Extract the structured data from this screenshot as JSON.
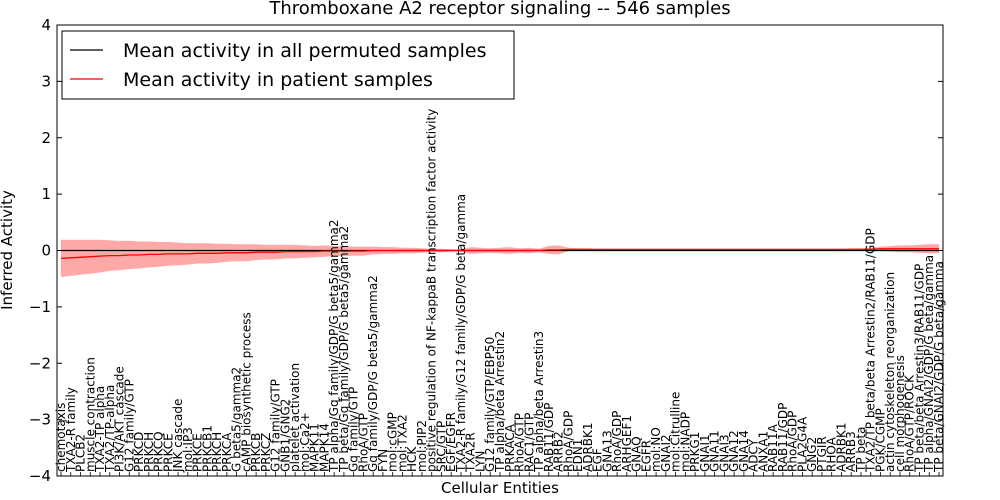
{
  "chart_data": {
    "type": "line",
    "title": "Thromboxane A2 receptor signaling -- 546 samples",
    "xlabel": "Cellular Entities",
    "ylabel": "Inferred Activity",
    "ylim": [
      -4,
      4
    ],
    "yticks": [
      -4,
      -3,
      -2,
      -1,
      0,
      1,
      2,
      3,
      4
    ],
    "reference_line": 0,
    "legend": {
      "placement": "top-left",
      "entries": [
        {
          "label": "Mean activity in all permuted samples",
          "color": "#000000"
        },
        {
          "label": "Mean activity in patient samples",
          "color": "#ff0000"
        }
      ]
    },
    "entities": [
      "chemotaxis",
      "TXA2-R family",
      "PLCB2",
      "muscle contraction",
      "TXA2-TP alpha",
      "TXA2/TP-alpha",
      "PI3K/AKT cascade",
      "G12 family/GTP",
      "PRKCD",
      "PRKCH",
      "PRKCQ",
      "PRKCE",
      "JNK cascade",
      "mol:IP3",
      "PRKCE",
      "PRKCB1",
      "PRKCH",
      "PRKCA",
      "G beta5/gamma2",
      "cAMP biosynthetic process",
      "PRKCB",
      "PRKCZ",
      "G12 family/GTP",
      "GNB1/GNG2",
      "platelet activation",
      "mol:Ca2+",
      "MAPK11",
      "MAPK14",
      "TP alpha/Gq family/GDP/G beta5/gamma2",
      "TP beta/Gq family/GDP/G beta5/gamma2",
      "Gq family/GTP",
      "RhoA/GTP",
      "Gq family/GDP/G beta5/gamma2",
      "FYN",
      "mol:cGMP",
      "mol:TXA2",
      "HCK",
      "mol:PIP2",
      "positive regulation of NF-kappaB transcription factor activity",
      "SRC/GTP",
      "EGF/EGFR",
      "TXA2-R family/G12 family/GDP/G beta/gamma",
      "TXA2R",
      "LYN",
      "G12 family/GTP/EBP50",
      "TP alpha/beta Arrestin2",
      "PRKACA",
      "RhoA/GTP",
      "RAC1/GTP",
      "TP alpha/beta Arrestin3",
      "RAB11/GDP",
      "ARRB2",
      "RhoA/GDP",
      "EDN1",
      "ADRBK1",
      "EGF",
      "GNA13",
      "RhoA/GDP",
      "ARHGEF1",
      "GNAQ",
      "EGFR",
      "mol:NO",
      "GNAI2",
      "mol:Citrulline",
      "mol:NADP",
      "PRKG1",
      "GNAI1",
      "GNA11",
      "GNAI3",
      "GNA12",
      "GNA14",
      "ADCY",
      "ANXA1",
      "RAB11A",
      "RAB11/GDP",
      "RhoA/GDP",
      "PLA2G4A",
      "GNG2",
      "PTGIR",
      "RHOA",
      "ADRBK1",
      "ARRB3",
      "TP beta",
      "TXA2/TP beta/beta Arrestin2/RAB11/GDP",
      "PGK/CGMP",
      "actin cytoskeleton reorganization",
      "cell morphogenesis",
      "RhoA/GTP/ROCK",
      "TP beta/beta Arrestin3/RAB11/GDP",
      "TP alpha/GNAI2/GDP/G beta/gamma",
      "TP beta/GNAI2/GDP/G beta/gamma"
    ],
    "series": [
      {
        "name": "Mean activity in all permuted samples",
        "color": "#000000",
        "values": [
          0.0,
          0.0,
          0.0,
          0.0,
          0.0,
          0.0,
          0.0,
          0.0,
          0.0,
          0.0,
          0.0,
          0.0,
          0.0,
          0.0,
          0.0,
          0.0,
          0.0,
          0.0,
          0.0,
          0.0,
          0.0,
          0.0,
          0.0,
          0.0,
          0.0,
          0.0,
          0.0,
          0.0,
          0.0,
          0.0,
          0.0,
          0.0,
          0.0,
          0.0,
          0.0,
          0.0,
          0.0,
          0.0,
          0.0,
          0.0,
          0.0,
          0.0,
          0.0,
          0.0,
          0.0,
          0.0,
          0.0,
          0.0,
          0.0,
          0.0,
          0.0,
          0.0,
          0.0,
          0.0,
          0.0,
          0.0,
          0.0,
          0.0,
          0.0,
          0.0,
          0.0,
          0.0,
          0.0,
          0.0,
          0.0,
          0.0,
          0.0,
          0.0,
          0.0,
          0.0,
          0.0,
          0.0,
          0.0,
          0.0,
          0.0,
          0.0,
          0.0,
          0.0,
          0.0,
          0.0,
          0.0,
          0.0,
          0.0,
          0.0,
          0.0,
          0.0,
          0.0,
          0.0,
          0.0,
          0.0,
          0.0
        ]
      },
      {
        "name": "Mean activity in patient samples",
        "color": "#ff0000",
        "values": [
          -0.14,
          -0.13,
          -0.12,
          -0.11,
          -0.1,
          -0.09,
          -0.09,
          -0.08,
          -0.08,
          -0.07,
          -0.07,
          -0.06,
          -0.06,
          -0.06,
          -0.05,
          -0.05,
          -0.05,
          -0.04,
          -0.04,
          -0.04,
          -0.03,
          -0.03,
          -0.03,
          -0.02,
          -0.02,
          -0.02,
          -0.02,
          -0.01,
          -0.01,
          -0.01,
          -0.01,
          -0.01,
          0.0,
          0.0,
          0.0,
          0.0,
          0.0,
          0.0,
          0.0,
          0.0,
          0.0,
          0.0,
          0.0,
          0.0,
          0.0,
          0.0,
          0.0,
          0.0,
          0.0,
          0.0,
          0.01,
          0.01,
          0.02,
          0.02,
          0.02,
          0.02,
          0.02,
          0.02,
          0.02,
          0.02,
          0.02,
          0.02,
          0.02,
          0.02,
          0.02,
          0.02,
          0.02,
          0.02,
          0.02,
          0.02,
          0.02,
          0.02,
          0.02,
          0.02,
          0.02,
          0.02,
          0.02,
          0.02,
          0.02,
          0.02,
          0.02,
          0.02,
          0.02,
          0.02,
          0.03,
          0.03,
          0.03,
          0.03,
          0.03,
          0.03,
          0.03
        ]
      }
    ],
    "band_halfwidth": [
      0.33,
      0.32,
      0.31,
      0.3,
      0.29,
      0.27,
      0.26,
      0.25,
      0.24,
      0.23,
      0.22,
      0.21,
      0.2,
      0.19,
      0.18,
      0.18,
      0.17,
      0.16,
      0.15,
      0.15,
      0.14,
      0.13,
      0.13,
      0.12,
      0.12,
      0.11,
      0.1,
      0.1,
      0.09,
      0.09,
      0.08,
      0.08,
      0.07,
      0.06,
      0.06,
      0.05,
      0.05,
      0.04,
      0.03,
      0.03,
      0.02,
      0.02,
      0.06,
      0.05,
      0.04,
      0.05,
      0.06,
      0.04,
      0.05,
      0.03,
      0.07,
      0.08,
      0.03,
      0.02,
      0.02,
      0.01,
      0.01,
      0.01,
      0.01,
      0.01,
      0.01,
      0.01,
      0.01,
      0.01,
      0.01,
      0.01,
      0.01,
      0.01,
      0.01,
      0.01,
      0.01,
      0.01,
      0.01,
      0.01,
      0.01,
      0.01,
      0.01,
      0.01,
      0.01,
      0.01,
      0.01,
      0.02,
      0.02,
      0.03,
      0.04,
      0.05,
      0.06,
      0.06,
      0.07,
      0.08,
      0.08
    ]
  }
}
